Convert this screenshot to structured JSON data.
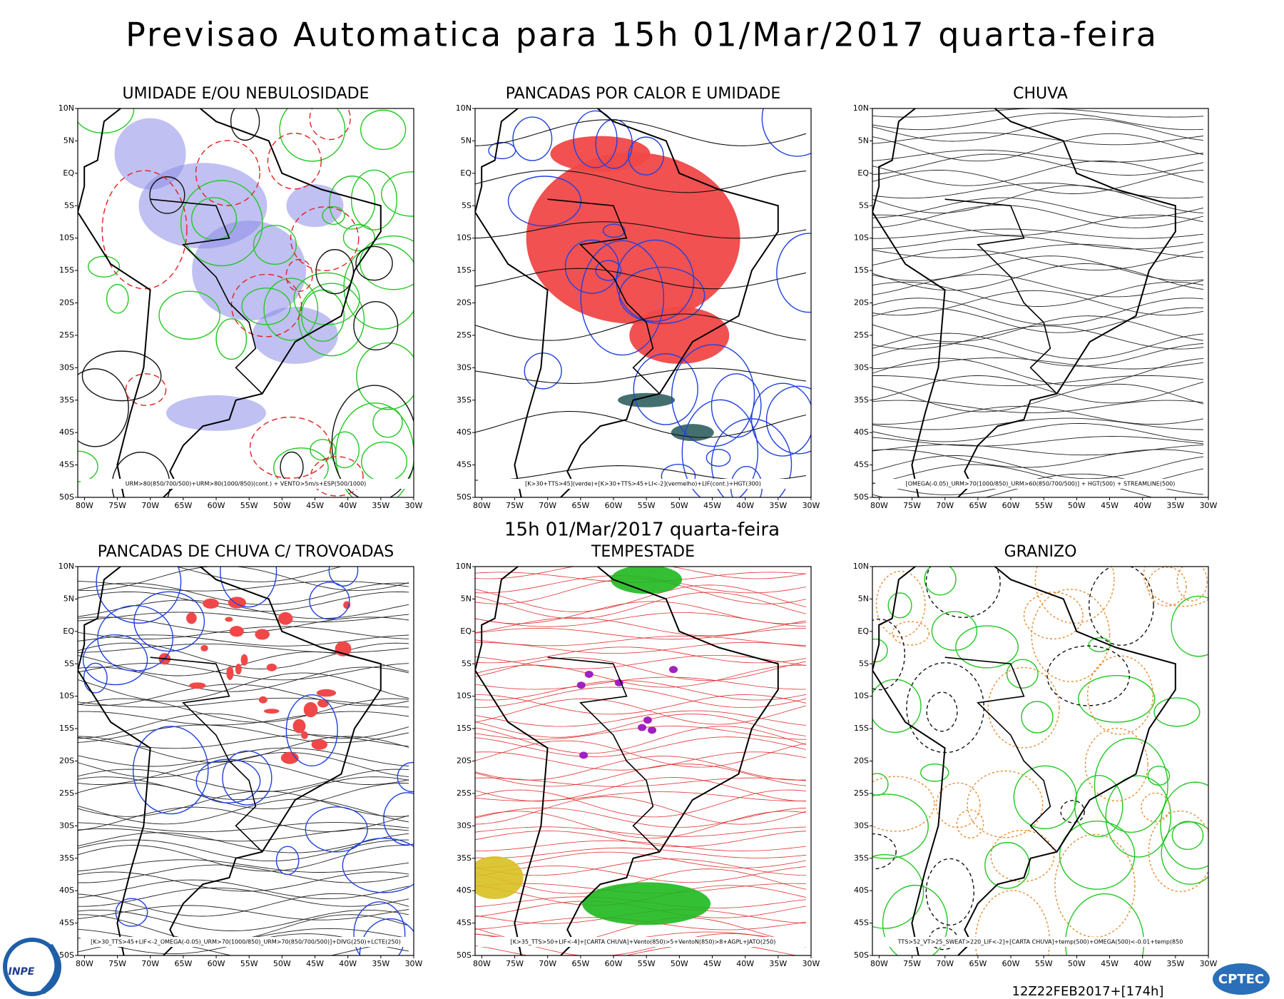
{
  "title": "Previsao Automatica  para 15h 01/Mar/2017 quarta-feira",
  "subtitle": "15h 01/Mar/2017 quarta-feira",
  "footer": "12Z22FEB2017+[174h]",
  "logos": {
    "left": "INPE",
    "right": "CPTEC"
  },
  "axes": {
    "lon_labels": [
      "80W",
      "75W",
      "70W",
      "65W",
      "60W",
      "55W",
      "50W",
      "45W",
      "40W",
      "35W",
      "30W"
    ],
    "lat_labels": [
      "10N",
      "5N",
      "EQ",
      "5S",
      "10S",
      "15S",
      "20S",
      "25S",
      "30S",
      "35S",
      "40S",
      "45S",
      "50S"
    ]
  },
  "panels": [
    {
      "title": "UMIDADE E/OU NEBULOSIDADE",
      "caption": "URM>80(850/700/500)+URM>80(1000/850)(cont.) + VENTO>5m/s+ESP(500/1000)"
    },
    {
      "title": "PANCADAS POR CALOR E UMIDADE",
      "caption": "[K>30+TTS>45](verde)+[K>30+TTS>45+LI<-2](vermelho)+LIF(cont.)+HGT(300)"
    },
    {
      "title": "CHUVA",
      "caption": "[OMEGA(-0.05)_URM>70(1000/850)_URM>60(850/700/500)] + HGT(500) + STREAMLINE(500)"
    },
    {
      "title": "PANCADAS DE CHUVA C/ TROVOADAS",
      "caption": "[K>30_TTS>45+LIF<-2_OMEGA(-0.05)_URM>70(1000/850)_URM>70(850/700/500)]+DIVG(250)+LCTE(250)"
    },
    {
      "title": "TEMPESTADE",
      "caption": "[K>35_TTS>50+LIF<-4]+[CARTA CHUVA]+Vento(850)>5+VentoN(850)>8+AGPL+JATO(250)"
    },
    {
      "title": "GRANIZO",
      "caption": "TTS>52_VT>25_SWEAT>220_LIF<-2]+[CARTA CHUVA]+temp(500)+OMEGA(500)<-0.01+temp(850"
    }
  ]
}
